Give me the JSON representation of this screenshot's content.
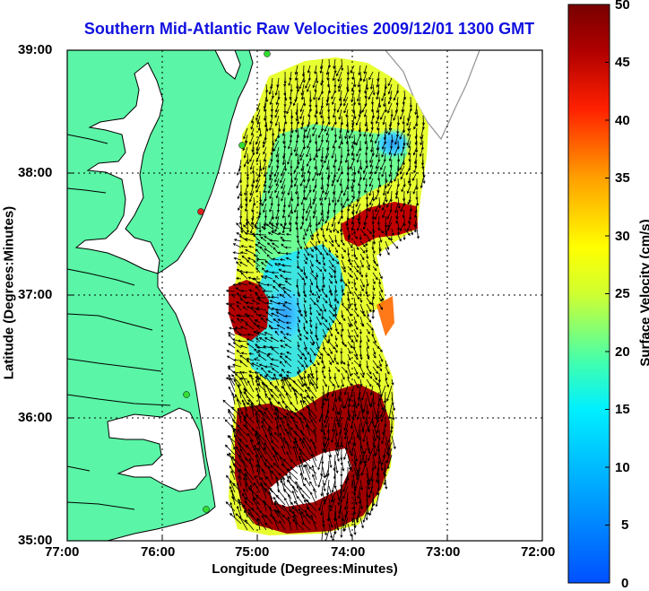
{
  "title": "Southern Mid-Atlantic Raw Velocities 2009/12/01 1300 GMT",
  "xlabel": "Longitude (Degrees:Minutes)",
  "ylabel": "Latitude (Degrees:Minutes)",
  "colorbar_label": "Surface Velocity (cm/s)",
  "x_ticks": [
    "77:00",
    "76:00",
    "75:00",
    "74:00",
    "73:00",
    "72:00"
  ],
  "y_ticks": [
    "39:00",
    "38:00",
    "37:00",
    "36:00",
    "35:00"
  ],
  "colorbar_ticks": [
    "50",
    "45",
    "40",
    "35",
    "30",
    "25",
    "20",
    "15",
    "10",
    "5",
    "0"
  ],
  "chart_data": {
    "type": "heatmap",
    "title": "Southern Mid-Atlantic Raw Velocities 2009/12/01 1300 GMT",
    "xlabel": "Longitude (Degrees:Minutes)",
    "ylabel": "Latitude (Degrees:Minutes)",
    "xlim": [
      -77,
      -72
    ],
    "ylim": [
      35,
      39
    ],
    "color_range": [
      0,
      50
    ],
    "colorbar_label": "Surface Velocity (cm/s)",
    "grid": true,
    "colormap": [
      "#0050ff",
      "#00b4ff",
      "#00f0ff",
      "#40ffb0",
      "#c0ff40",
      "#ffff00",
      "#ffa000",
      "#ff2000",
      "#b00000",
      "#780000"
    ],
    "land_color": "#5af5a6",
    "station_colors": [
      "#33dd33",
      "#dd2222"
    ]
  }
}
